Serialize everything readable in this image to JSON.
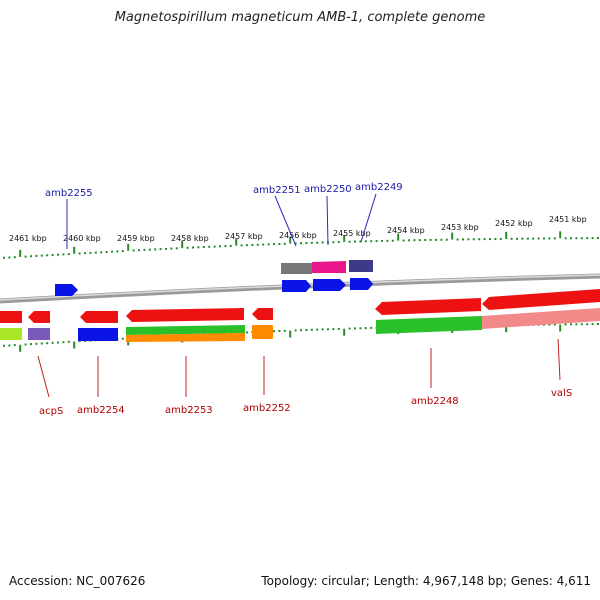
{
  "title": "Magnetospirillum magneticum AMB-1, complete genome",
  "footer": {
    "accession": "Accession: NC_007626",
    "topology": "Topology: circular; Length: 4,967,148 bp; Genes: 4,611"
  },
  "colors": {
    "top_labels": "#1a1aaa",
    "bottom_labels": "#b00000",
    "scale_ticks": "#2a8a2a",
    "backbone": "#8c8c8c"
  },
  "scale": {
    "unit": "kbp",
    "ticks": [
      "2461 kbp",
      "2460 kbp",
      "2459 kbp",
      "2458 kbp",
      "2457 kbp",
      "2456 kbp",
      "2455 kbp",
      "2454 kbp",
      "2453 kbp",
      "2452 kbp",
      "2451 kbp"
    ]
  },
  "genes_top": [
    {
      "label": "amb2255"
    },
    {
      "label": "amb2251"
    },
    {
      "label": "amb2250"
    },
    {
      "label": "amb2249"
    }
  ],
  "genes_bottom": [
    {
      "label": "acpS"
    },
    {
      "label": "amb2254"
    },
    {
      "label": "amb2253"
    },
    {
      "label": "amb2252"
    },
    {
      "label": "amb2248"
    },
    {
      "label": "valS"
    }
  ]
}
